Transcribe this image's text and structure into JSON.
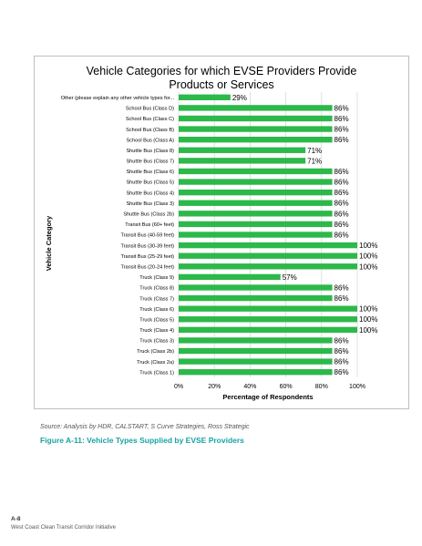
{
  "chart_data": {
    "type": "bar",
    "orientation": "horizontal",
    "title": "Vehicle Categories for which EVSE Providers Provide Products or Services",
    "title_lines": [
      "Vehicle Categories for which EVSE Providers Provide",
      "Products or Services"
    ],
    "xlabel": "Percentage of Respondents",
    "ylabel": "Vehicle Category",
    "xlim": [
      0,
      100
    ],
    "xticks": [
      "0%",
      "20%",
      "40%",
      "60%",
      "80%",
      "100%"
    ],
    "grid": true,
    "bar_color": "#2db84a",
    "categories": [
      "Other (please explain any other vehicle types for...",
      "School Bus (Class D)",
      "School Bus (Class C)",
      "School Bus (Class B)",
      "School Bus (Class A)",
      "Shuttle Bus (Class 8)",
      "Shuttle Bus (Class 7)",
      "Shuttle Bus (Class 6)",
      "Shuttle Bus (Class 5)",
      "Shuttle Bus (Class 4)",
      "Shuttle Bus (Class 3)",
      "Shuttle Bus (Class 2b)",
      "Transit Bus (60+ feet)",
      "Transit Bus (40-59 feet)",
      "Transit Bus (30-39 feet)",
      "Transit Bus (25-29 feet)",
      "Transit Bus (20-24 feet)",
      "Truck (Class 9)",
      "Truck (Class 8)",
      "Truck (Class 7)",
      "Truck (Class 6)",
      "Truck (Class 5)",
      "Truck (Class 4)",
      "Truck (Class 3)",
      "Truck (Class 2b)",
      "Truck (Class 2a)",
      "Truck (Class 1)"
    ],
    "values": [
      29,
      86,
      86,
      86,
      86,
      71,
      71,
      86,
      86,
      86,
      86,
      86,
      86,
      86,
      100,
      100,
      100,
      57,
      86,
      86,
      100,
      100,
      100,
      86,
      86,
      86,
      86
    ],
    "value_labels": [
      "29%",
      "86%",
      "86%",
      "86%",
      "86%",
      "71%",
      "71%",
      "86%",
      "86%",
      "86%",
      "86%",
      "86%",
      "86%",
      "86%",
      "100%",
      "100%",
      "100%",
      "57%",
      "86%",
      "86%",
      "100%",
      "100%",
      "100%",
      "86%",
      "86%",
      "86%",
      "86%"
    ]
  },
  "source": "Source: Analysis by HDR, CALSTART, S Curve Strategies, Ross Strategic",
  "caption": "Figure A-11: Vehicle Types Supplied by EVSE Providers",
  "page_number": "A-8",
  "footer": "West Coast Clean Transit Corridor Initiative"
}
